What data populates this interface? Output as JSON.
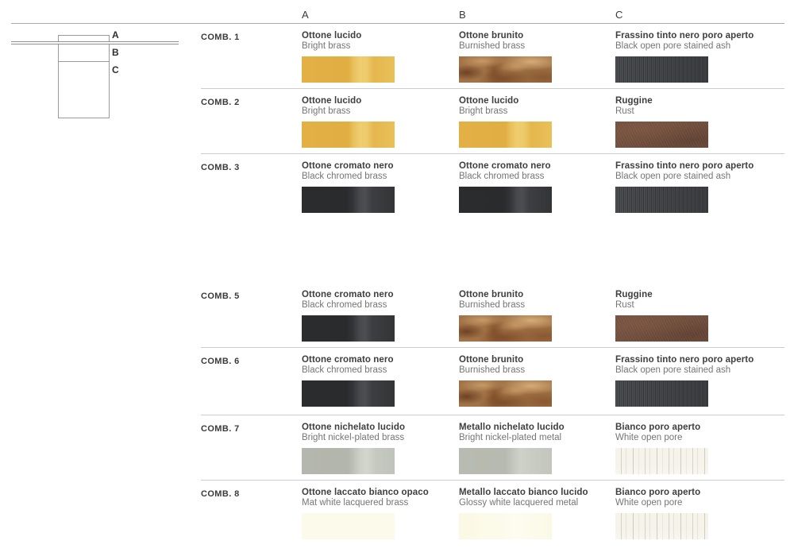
{
  "page": {
    "background": "#ffffff"
  },
  "diagram": {
    "part_labels": [
      "A",
      "B",
      "C"
    ]
  },
  "table": {
    "column_headers": [
      "A",
      "B",
      "C"
    ],
    "rows": [
      {
        "label": "COMB. 1",
        "cells": [
          {
            "name_it": "Ottone lucido",
            "name_en": "Bright brass",
            "finish": "bright-brass"
          },
          {
            "name_it": "Ottone brunito",
            "name_en": "Burnished brass",
            "finish": "burnished-brass"
          },
          {
            "name_it": "Frassino tinto nero poro aperto",
            "name_en": "Black open pore stained ash",
            "finish": "black-ash"
          }
        ]
      },
      {
        "label": "COMB. 2",
        "cells": [
          {
            "name_it": "Ottone lucido",
            "name_en": "Bright brass",
            "finish": "bright-brass"
          },
          {
            "name_it": "Ottone lucido",
            "name_en": "Bright brass",
            "finish": "bright-brass"
          },
          {
            "name_it": "Ruggine",
            "name_en": "Rust",
            "finish": "rust"
          }
        ]
      },
      {
        "label": "COMB. 3",
        "cells": [
          {
            "name_it": "Ottone cromato nero",
            "name_en": "Black chromed brass",
            "finish": "black-chrome"
          },
          {
            "name_it": "Ottone cromato nero",
            "name_en": "Black chromed brass",
            "finish": "black-chrome"
          },
          {
            "name_it": "Frassino tinto nero poro aperto",
            "name_en": "Black open pore stained ash",
            "finish": "black-ash"
          }
        ]
      },
      {
        "label": "COMB. 5",
        "cells": [
          {
            "name_it": "Ottone cromato nero",
            "name_en": "Black chromed brass",
            "finish": "black-chrome"
          },
          {
            "name_it": "Ottone brunito",
            "name_en": "Burnished brass",
            "finish": "burnished-brass"
          },
          {
            "name_it": "Ruggine",
            "name_en": "Rust",
            "finish": "rust"
          }
        ]
      },
      {
        "label": "COMB. 6",
        "cells": [
          {
            "name_it": "Ottone cromato nero",
            "name_en": "Black chromed brass",
            "finish": "black-chrome"
          },
          {
            "name_it": "Ottone brunito",
            "name_en": "Burnished brass",
            "finish": "burnished-brass"
          },
          {
            "name_it": "Frassino tinto nero poro aperto",
            "name_en": "Black open pore stained ash",
            "finish": "black-ash"
          }
        ]
      },
      {
        "label": "COMB. 7",
        "cells": [
          {
            "name_it": "Ottone nichelato lucido",
            "name_en": "Bright nickel-plated brass",
            "finish": "nickel-brass"
          },
          {
            "name_it": "Metallo nichelato lucido",
            "name_en": "Bright nickel-plated metal",
            "finish": "nickel-metal"
          },
          {
            "name_it": "Bianco poro aperto",
            "name_en": "White open pore",
            "finish": "white-pore"
          }
        ]
      },
      {
        "label": "COMB. 8",
        "cells": [
          {
            "name_it": "Ottone laccato bianco opaco",
            "name_en": "Mat white lacquered brass",
            "finish": "mat-white"
          },
          {
            "name_it": "Metallo laccato bianco lucido",
            "name_en": "Glossy white lacquered metal",
            "finish": "glossy-white"
          },
          {
            "name_it": "Bianco poro aperto",
            "name_en": "White open pore",
            "finish": "white-pore"
          }
        ]
      }
    ]
  },
  "finish_colors": {
    "bright-brass": "#e5b54a",
    "burnished-brass": "#9a6a41",
    "black-ash": "#3d3f41",
    "rust": "#745142",
    "black-chrome": "#2e3032",
    "nickel-brass": "#b7bab0",
    "nickel-metal": "#babdb3",
    "white-pore": "#f4f2e9",
    "mat-white": "#fbfaeb",
    "glossy-white": "#fbf9e8"
  }
}
